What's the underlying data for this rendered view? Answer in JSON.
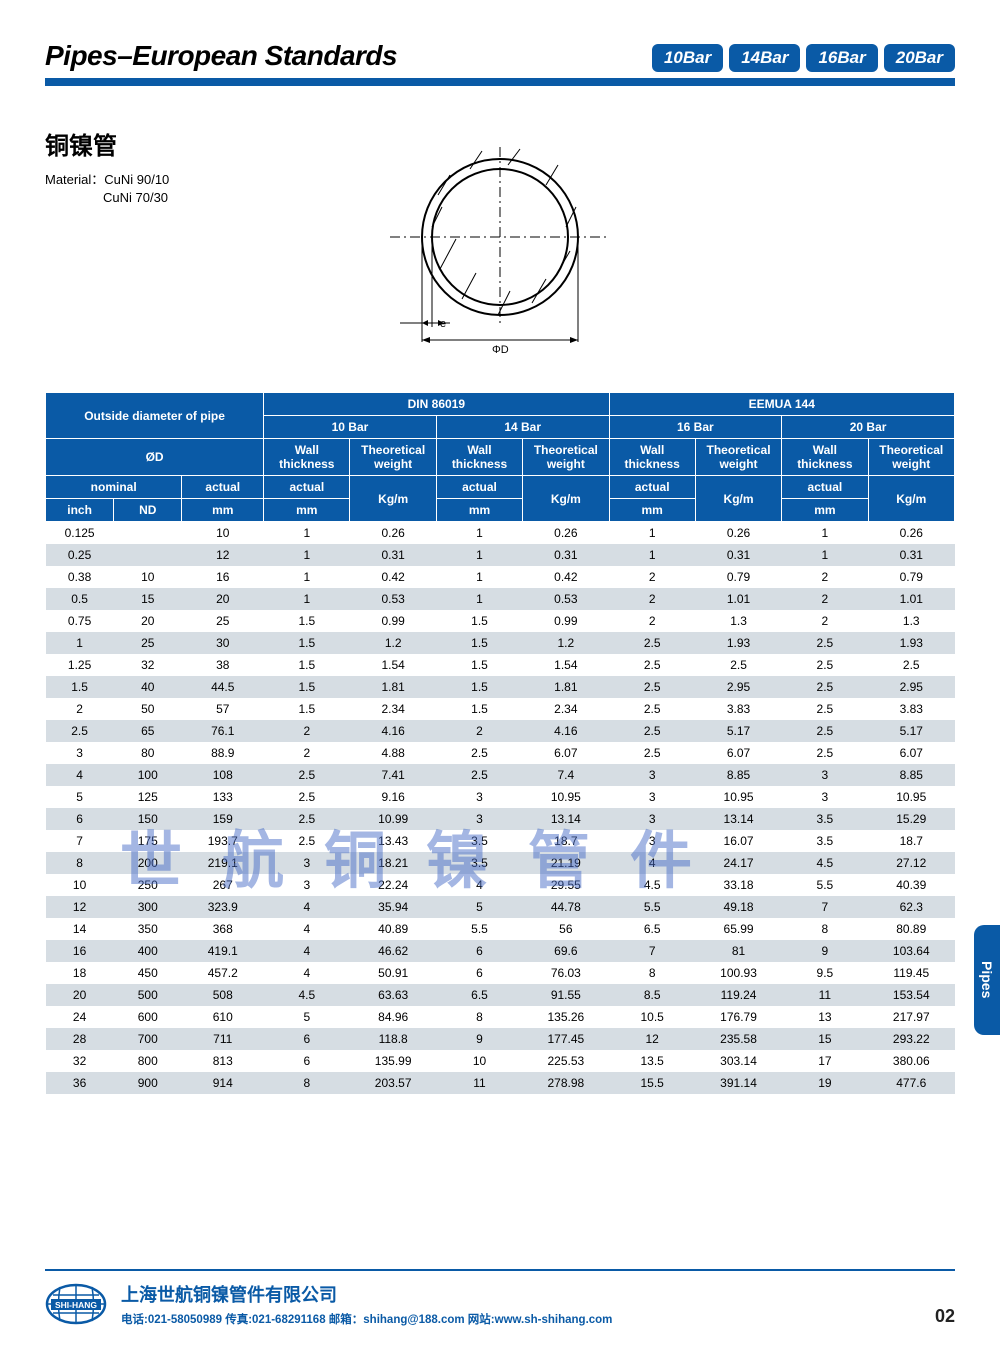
{
  "colors": {
    "primary": "#0a5aa6",
    "row_alt": "#d6dde3",
    "text": "#000000",
    "watermark": "#4b6fc8"
  },
  "header": {
    "title": "Pipes–European Standards",
    "badges": [
      "10Bar",
      "14Bar",
      "16Bar",
      "20Bar"
    ]
  },
  "subtitle": "铜镍管",
  "material": {
    "label": "Material：",
    "line1": "CuNi 90/10",
    "line2": "CuNi 70/30"
  },
  "diagram": {
    "label_e": "e",
    "label_d": "ΦD"
  },
  "side_tab": "Pipes",
  "watermark": "世航铜镍管件",
  "table": {
    "top_groups": [
      "Outside diameter of pipe",
      "DIN 86019",
      "EEMUA 144"
    ],
    "bar_labels": [
      "10 Bar",
      "14 Bar",
      "16 Bar",
      "20 Bar"
    ],
    "od_label": "ØD",
    "wall_label": "Wall thickness",
    "tw_label": "Theoretical weight",
    "nominal": "nominal",
    "actual": "actual",
    "inch": "inch",
    "nd": "ND",
    "mm": "mm",
    "kgm": "Kg/m",
    "rows": [
      [
        "0.125",
        "",
        "10",
        "1",
        "0.26",
        "1",
        "0.26",
        "1",
        "0.26",
        "1",
        "0.26"
      ],
      [
        "0.25",
        "",
        "12",
        "1",
        "0.31",
        "1",
        "0.31",
        "1",
        "0.31",
        "1",
        "0.31"
      ],
      [
        "0.38",
        "10",
        "16",
        "1",
        "0.42",
        "1",
        "0.42",
        "2",
        "0.79",
        "2",
        "0.79"
      ],
      [
        "0.5",
        "15",
        "20",
        "1",
        "0.53",
        "1",
        "0.53",
        "2",
        "1.01",
        "2",
        "1.01"
      ],
      [
        "0.75",
        "20",
        "25",
        "1.5",
        "0.99",
        "1.5",
        "0.99",
        "2",
        "1.3",
        "2",
        "1.3"
      ],
      [
        "1",
        "25",
        "30",
        "1.5",
        "1.2",
        "1.5",
        "1.2",
        "2.5",
        "1.93",
        "2.5",
        "1.93"
      ],
      [
        "1.25",
        "32",
        "38",
        "1.5",
        "1.54",
        "1.5",
        "1.54",
        "2.5",
        "2.5",
        "2.5",
        "2.5"
      ],
      [
        "1.5",
        "40",
        "44.5",
        "1.5",
        "1.81",
        "1.5",
        "1.81",
        "2.5",
        "2.95",
        "2.5",
        "2.95"
      ],
      [
        "2",
        "50",
        "57",
        "1.5",
        "2.34",
        "1.5",
        "2.34",
        "2.5",
        "3.83",
        "2.5",
        "3.83"
      ],
      [
        "2.5",
        "65",
        "76.1",
        "2",
        "4.16",
        "2",
        "4.16",
        "2.5",
        "5.17",
        "2.5",
        "5.17"
      ],
      [
        "3",
        "80",
        "88.9",
        "2",
        "4.88",
        "2.5",
        "6.07",
        "2.5",
        "6.07",
        "2.5",
        "6.07"
      ],
      [
        "4",
        "100",
        "108",
        "2.5",
        "7.41",
        "2.5",
        "7.4",
        "3",
        "8.85",
        "3",
        "8.85"
      ],
      [
        "5",
        "125",
        "133",
        "2.5",
        "9.16",
        "3",
        "10.95",
        "3",
        "10.95",
        "3",
        "10.95"
      ],
      [
        "6",
        "150",
        "159",
        "2.5",
        "10.99",
        "3",
        "13.14",
        "3",
        "13.14",
        "3.5",
        "15.29"
      ],
      [
        "7",
        "175",
        "193.7",
        "2.5",
        "13.43",
        "3.5",
        "18.7",
        "3",
        "16.07",
        "3.5",
        "18.7"
      ],
      [
        "8",
        "200",
        "219.1",
        "3",
        "18.21",
        "3.5",
        "21.19",
        "4",
        "24.17",
        "4.5",
        "27.12"
      ],
      [
        "10",
        "250",
        "267",
        "3",
        "22.24",
        "4",
        "29.55",
        "4.5",
        "33.18",
        "5.5",
        "40.39"
      ],
      [
        "12",
        "300",
        "323.9",
        "4",
        "35.94",
        "5",
        "44.78",
        "5.5",
        "49.18",
        "7",
        "62.3"
      ],
      [
        "14",
        "350",
        "368",
        "4",
        "40.89",
        "5.5",
        "56",
        "6.5",
        "65.99",
        "8",
        "80.89"
      ],
      [
        "16",
        "400",
        "419.1",
        "4",
        "46.62",
        "6",
        "69.6",
        "7",
        "81",
        "9",
        "103.64"
      ],
      [
        "18",
        "450",
        "457.2",
        "4",
        "50.91",
        "6",
        "76.03",
        "8",
        "100.93",
        "9.5",
        "119.45"
      ],
      [
        "20",
        "500",
        "508",
        "4.5",
        "63.63",
        "6.5",
        "91.55",
        "8.5",
        "119.24",
        "11",
        "153.54"
      ],
      [
        "24",
        "600",
        "610",
        "5",
        "84.96",
        "8",
        "135.26",
        "10.5",
        "176.79",
        "13",
        "217.97"
      ],
      [
        "28",
        "700",
        "711",
        "6",
        "118.8",
        "9",
        "177.45",
        "12",
        "235.58",
        "15",
        "293.22"
      ],
      [
        "32",
        "800",
        "813",
        "6",
        "135.99",
        "10",
        "225.53",
        "13.5",
        "303.14",
        "17",
        "380.06"
      ],
      [
        "36",
        "900",
        "914",
        "8",
        "203.57",
        "11",
        "278.98",
        "15.5",
        "391.14",
        "19",
        "477.6"
      ]
    ]
  },
  "footer": {
    "logo_text": "SHI-HANG",
    "company": "上海世航铜镍管件有限公司",
    "contact": "电话:021-58050989  传真:021-68291168  邮箱：shihang@188.com  网站:www.sh-shihang.com",
    "page_num": "02"
  }
}
